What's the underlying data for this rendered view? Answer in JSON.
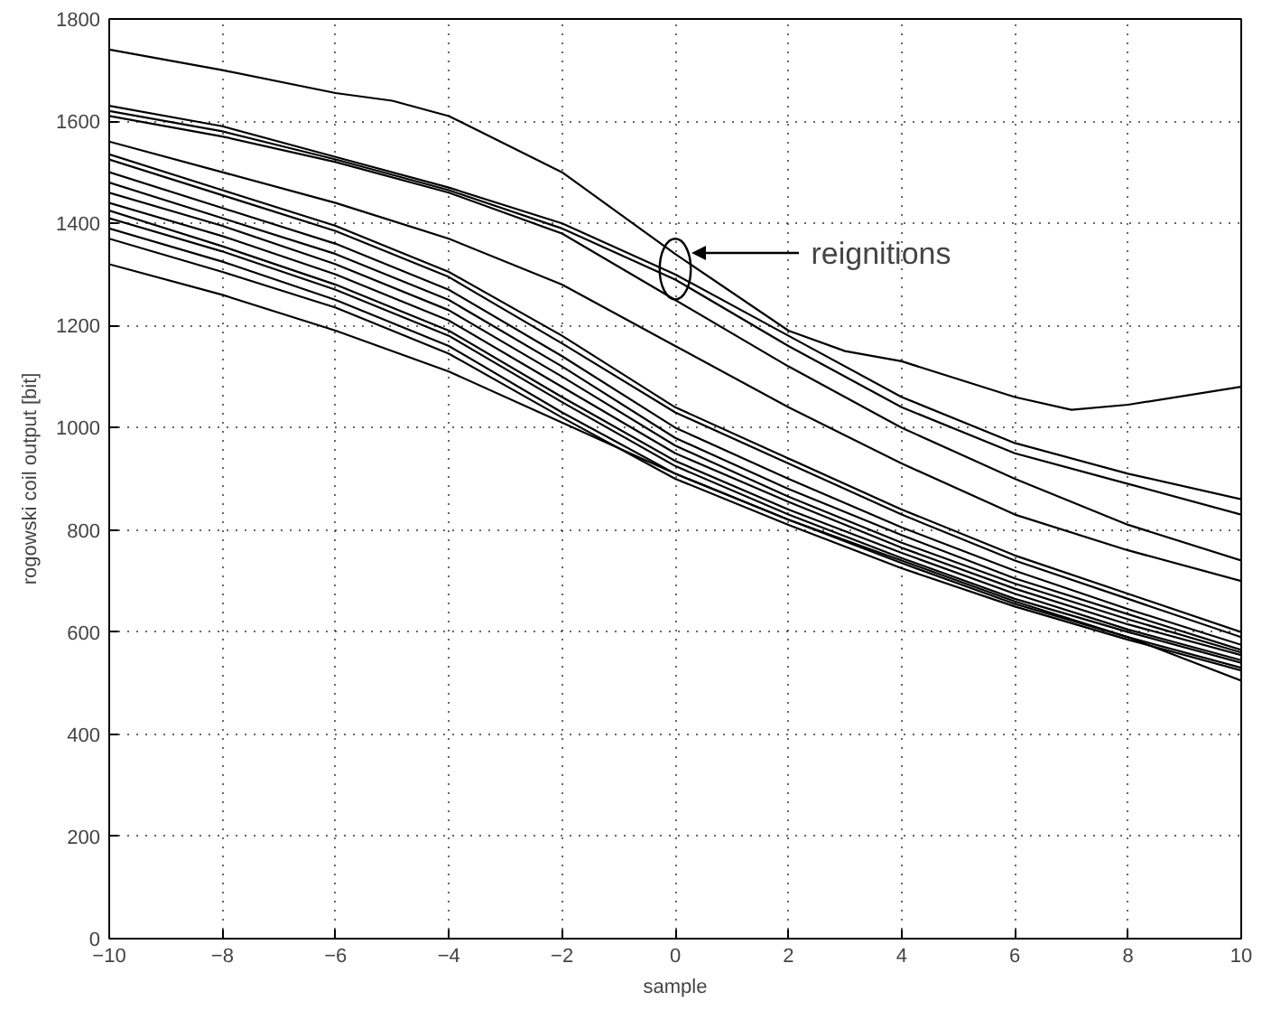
{
  "chart_data": {
    "type": "line",
    "xlabel": "sample",
    "ylabel": "rogowski coil output [bit]",
    "x": [
      -10,
      -8,
      -6,
      -4,
      -2,
      0,
      2,
      4,
      6,
      8,
      10
    ],
    "xlim": [
      -10,
      10
    ],
    "ylim": [
      0,
      1800
    ],
    "xticks": [
      -10,
      -8,
      -6,
      -4,
      -2,
      0,
      2,
      4,
      6,
      8,
      10
    ],
    "yticks": [
      0,
      200,
      400,
      600,
      800,
      1000,
      1200,
      1400,
      1600,
      1800
    ],
    "grid": true,
    "marker": "none",
    "line_style": "solid",
    "annotations": [
      "reignitions"
    ],
    "series": [
      {
        "color": "#000000",
        "x": [
          -10,
          -8,
          -6,
          -5,
          -4,
          -2,
          0,
          2,
          3,
          4,
          6,
          7,
          8,
          10
        ],
        "values": [
          1740,
          1700,
          1655,
          1640,
          1610,
          1500,
          1340,
          1190,
          1150,
          1130,
          1060,
          1035,
          1045,
          1080
        ]
      },
      {
        "color": "#000000",
        "values": [
          1630,
          1590,
          1530,
          1470,
          1400,
          1300,
          1180,
          1060,
          970,
          910,
          860
        ]
      },
      {
        "color": "#000000",
        "values": [
          1620,
          1580,
          1525,
          1465,
          1390,
          1290,
          1160,
          1040,
          950,
          890,
          830
        ]
      },
      {
        "color": "#000000",
        "values": [
          1610,
          1570,
          1520,
          1460,
          1380,
          1250,
          1120,
          1000,
          900,
          810,
          740
        ]
      },
      {
        "color": "#000000",
        "values": [
          1560,
          1500,
          1440,
          1370,
          1280,
          1160,
          1040,
          930,
          830,
          760,
          700
        ]
      },
      {
        "color": "#000000",
        "values": [
          1535,
          1465,
          1395,
          1305,
          1180,
          1040,
          940,
          840,
          750,
          675,
          600
        ]
      },
      {
        "color": "#000000",
        "values": [
          1525,
          1455,
          1385,
          1295,
          1165,
          1030,
          930,
          830,
          740,
          665,
          590
        ]
      },
      {
        "color": "#000000",
        "values": [
          1500,
          1430,
          1360,
          1270,
          1140,
          1000,
          900,
          805,
          720,
          645,
          575
        ]
      },
      {
        "color": "#000000",
        "values": [
          1480,
          1410,
          1340,
          1250,
          1120,
          980,
          880,
          790,
          705,
          635,
          565
        ]
      },
      {
        "color": "#000000",
        "values": [
          1460,
          1395,
          1320,
          1230,
          1100,
          965,
          865,
          775,
          695,
          625,
          560
        ]
      },
      {
        "color": "#000000",
        "values": [
          1440,
          1375,
          1300,
          1210,
          1080,
          950,
          855,
          765,
          685,
          615,
          555
        ]
      },
      {
        "color": "#000000",
        "values": [
          1425,
          1355,
          1280,
          1190,
          1060,
          935,
          840,
          755,
          675,
          605,
          545
        ]
      },
      {
        "color": "#000000",
        "values": [
          1410,
          1345,
          1270,
          1180,
          1050,
          925,
          830,
          745,
          665,
          600,
          540
        ]
      },
      {
        "color": "#000000",
        "values": [
          1390,
          1325,
          1250,
          1160,
          1030,
          910,
          820,
          735,
          655,
          590,
          530
        ]
      },
      {
        "color": "#000000",
        "values": [
          1370,
          1305,
          1235,
          1145,
          1020,
          900,
          810,
          725,
          650,
          585,
          525
        ]
      },
      {
        "color": "#000000",
        "values": [
          1320,
          1260,
          1190,
          1110,
          1010,
          910,
          820,
          740,
          660,
          590,
          505
        ]
      }
    ]
  }
}
